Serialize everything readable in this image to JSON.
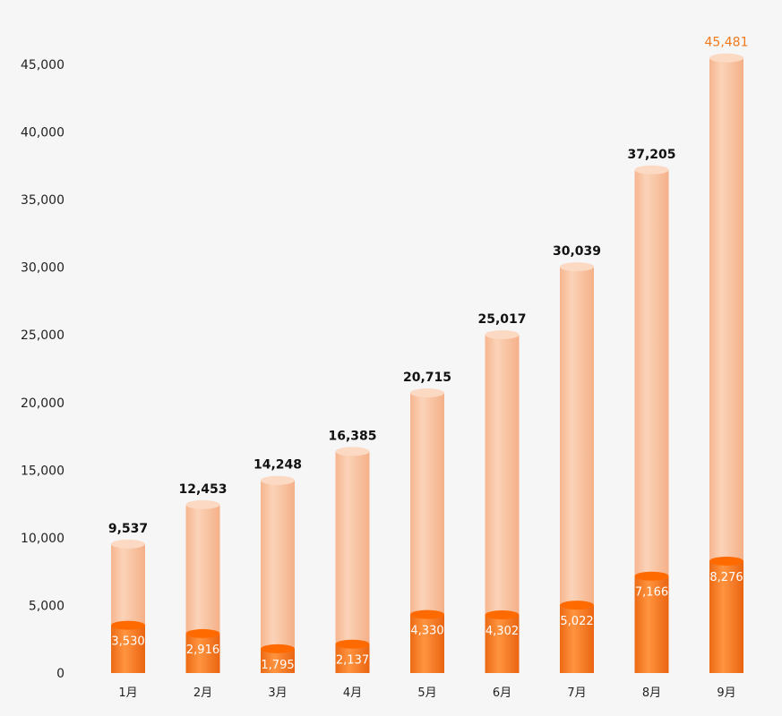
{
  "chart_data": {
    "type": "bar",
    "categories": [
      "1月",
      "2月",
      "3月",
      "4月",
      "5月",
      "6月",
      "7月",
      "8月",
      "9月"
    ],
    "series": [
      {
        "values": [
          9537,
          12453,
          14248,
          16385,
          20715,
          25017,
          30039,
          37205,
          45481
        ]
      },
      {
        "values": [
          3530,
          2916,
          1795,
          2137,
          4330,
          4302,
          5022,
          7166,
          8276
        ]
      }
    ],
    "yticks": [
      "0",
      "5,000",
      "10,000",
      "15,000",
      "20,000",
      "25,000",
      "30,000",
      "35,000",
      "40,000",
      "45,000"
    ],
    "total_labels": [
      "9,537",
      "12,453",
      "14,248",
      "16,385",
      "20,715",
      "25,017",
      "30,039",
      "37,205",
      "45,481"
    ],
    "inner_labels": [
      "3,530",
      "2,916",
      "1,795",
      "2,137",
      "4,330",
      "4,302",
      "5,022",
      "7,166",
      "8,276"
    ],
    "ylim": [
      0,
      45000
    ],
    "grid": false,
    "style": "overlapping 3D cylinders",
    "colors": {
      "background": "#f6f6f7",
      "outer": "#f8c6a4",
      "outer_top": "#fbd9c3",
      "inner": "#f47a20",
      "inner_top": "#ff6a00",
      "highlight_total": "#f07a1c"
    }
  }
}
